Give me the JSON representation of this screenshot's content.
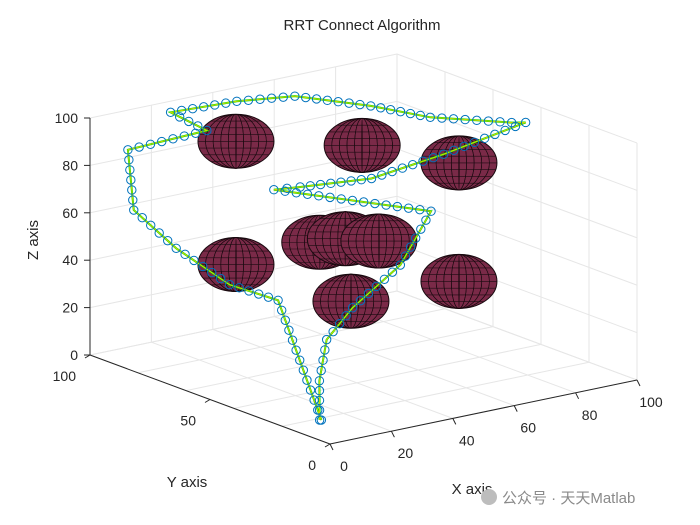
{
  "chart_data": {
    "type": "scatter3d",
    "title": "RRT Connect Algorithm",
    "xlabel": "X axis",
    "ylabel": "Y axis",
    "zlabel": "Z axis",
    "xlim": [
      0,
      100
    ],
    "ylim": [
      0,
      100
    ],
    "zlim": [
      0,
      100
    ],
    "xticks": [
      0,
      20,
      40,
      60,
      80,
      100
    ],
    "yticks": [
      0,
      50,
      100
    ],
    "zticks": [
      0,
      20,
      40,
      60,
      80,
      100
    ],
    "grid": true,
    "colors": {
      "obstacle": "#7a2a48",
      "path": "#00e000",
      "tree_markers": "#0072bd",
      "tree_line": "#d4d400",
      "grid": "#e6e6e6",
      "axis": "#262626"
    },
    "obstacles": [
      {
        "name": "sphere-upper-center",
        "center": [
          48,
          48,
          95
        ],
        "radius": 10
      },
      {
        "name": "sphere-upper-left",
        "center": [
          28,
          75,
          92
        ],
        "radius": 10
      },
      {
        "name": "sphere-upper-right",
        "center": [
          85,
          55,
          75
        ],
        "radius": 10
      },
      {
        "name": "sphere-middle-cluster-1",
        "center": [
          42,
          58,
          52
        ],
        "radius": 10
      },
      {
        "name": "sphere-middle-cluster-2",
        "center": [
          48,
          55,
          53
        ],
        "radius": 10
      },
      {
        "name": "sphere-middle-cluster-3",
        "center": [
          55,
          50,
          52
        ],
        "radius": 10
      },
      {
        "name": "sphere-lower-left",
        "center": [
          28,
          75,
          40
        ],
        "radius": 10
      },
      {
        "name": "sphere-lower-center",
        "center": [
          42,
          45,
          32
        ],
        "radius": 10
      },
      {
        "name": "sphere-lower-right",
        "center": [
          85,
          55,
          25
        ],
        "radius": 10
      }
    ],
    "series": [
      {
        "name": "RRT Connect path",
        "points": [
          [
            5,
            10,
            5
          ],
          [
            30,
            60,
            30
          ],
          [
            22,
            70,
            35
          ],
          [
            14,
            82,
            48
          ],
          [
            8,
            92,
            62
          ],
          [
            10,
            97,
            85
          ],
          [
            24,
            82,
            95
          ],
          [
            20,
            92,
            100
          ],
          [
            40,
            90,
            100
          ],
          [
            55,
            85,
            100
          ],
          [
            68,
            70,
            98
          ],
          [
            78,
            58,
            95
          ],
          [
            92,
            42,
            95
          ],
          [
            95,
            40,
            95
          ],
          [
            80,
            55,
            80
          ],
          [
            62,
            62,
            72
          ],
          [
            45,
            70,
            70
          ],
          [
            38,
            72,
            70
          ],
          [
            72,
            50,
            60
          ],
          [
            62,
            50,
            40
          ],
          [
            48,
            52,
            25
          ],
          [
            38,
            50,
            15
          ],
          [
            20,
            30,
            10
          ],
          [
            6,
            12,
            4
          ]
        ]
      }
    ]
  },
  "watermark": {
    "text": "公众号 · 天天Matlab"
  }
}
